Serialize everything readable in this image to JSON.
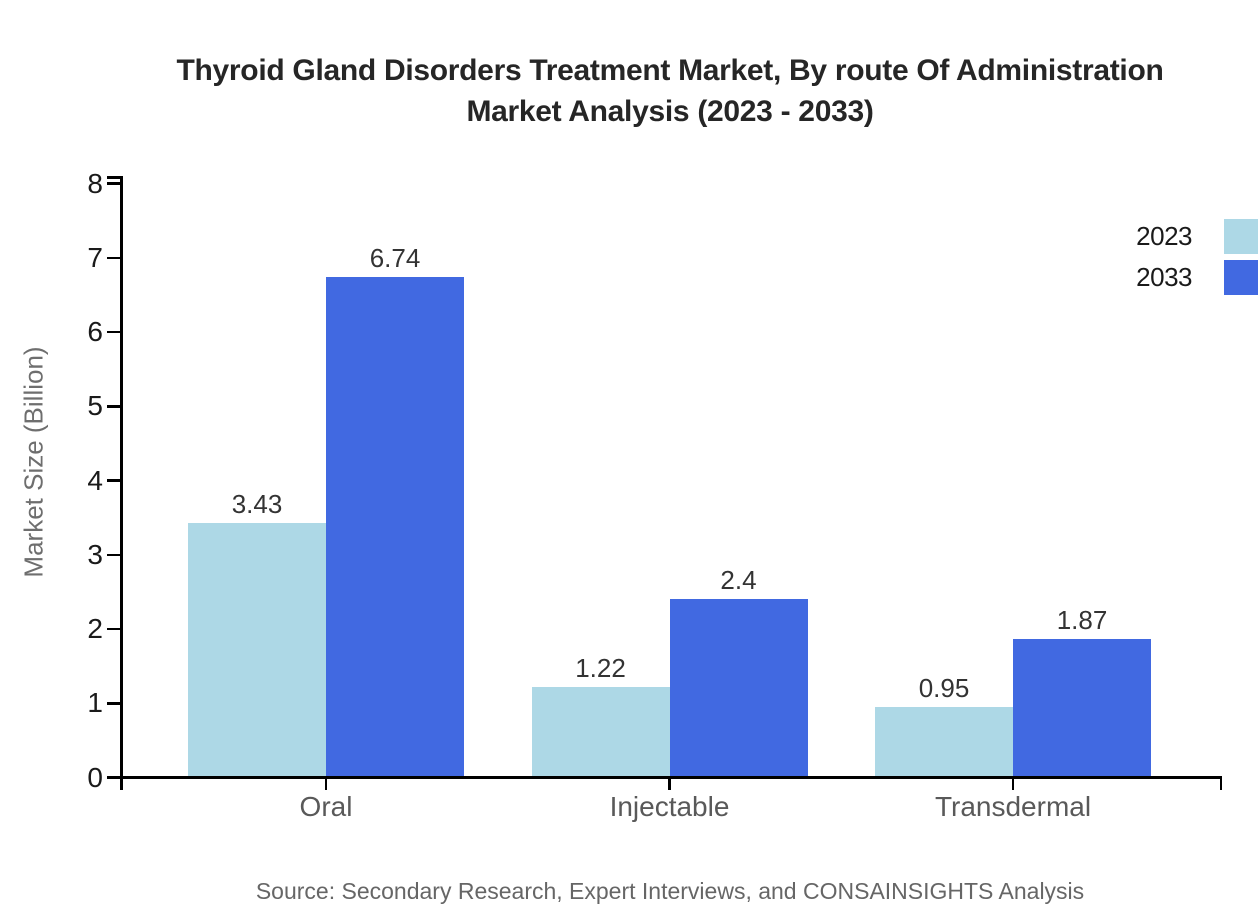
{
  "title": {
    "line1": "Thyroid Gland Disorders Treatment Market, By route Of Administration",
    "line2": "Market Analysis (2023 - 2033)"
  },
  "legend": [
    {
      "label": "2023",
      "color": "#ADD8E6"
    },
    {
      "label": "2033",
      "color": "#4169E1"
    }
  ],
  "chart_data": {
    "type": "bar",
    "categories": [
      "Oral",
      "Injectable",
      "Transdermal"
    ],
    "series": [
      {
        "name": "2023",
        "color": "#ADD8E6",
        "values": [
          3.43,
          1.22,
          0.95
        ],
        "labels": [
          "3.43",
          "1.22",
          "0.95"
        ]
      },
      {
        "name": "2033",
        "color": "#4169E1",
        "values": [
          6.74,
          2.4,
          1.87
        ],
        "labels": [
          "6.74",
          "2.4",
          "1.87"
        ]
      }
    ],
    "title": "Thyroid Gland Disorders Treatment Market, By route Of Administration Market Analysis (2023 - 2033)",
    "xlabel": "",
    "ylabel": "Market Size (Billion)",
    "yticks": [
      0,
      1,
      2,
      3,
      4,
      5,
      6,
      7,
      8
    ],
    "ylim": [
      0,
      8
    ],
    "grid": false,
    "legend_position": "top-right"
  },
  "source": "Source: Secondary Research, Expert Interviews, and CONSAINSIGHTS Analysis"
}
